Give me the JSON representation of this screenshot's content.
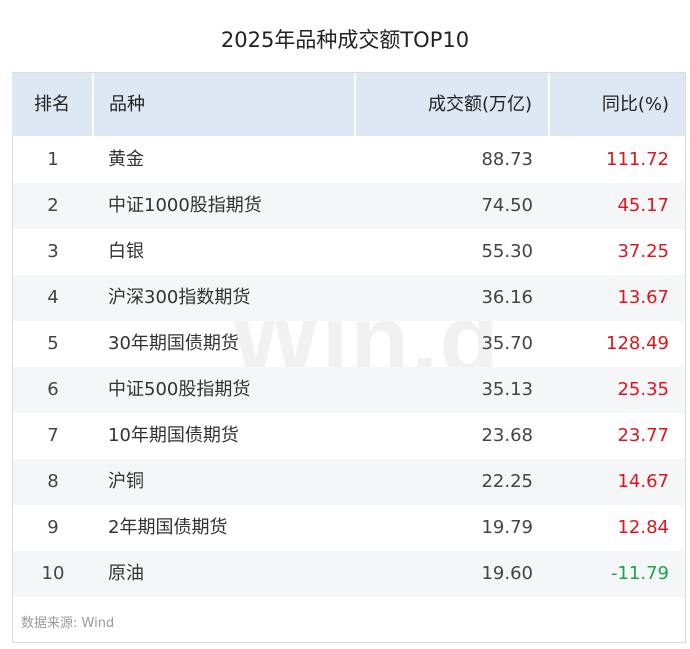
{
  "title": "2025年品种成交额TOP10",
  "headers": {
    "rank": "排名",
    "name": "品种",
    "volume": "成交额(万亿)",
    "yoy": "同比(%)"
  },
  "rows": [
    {
      "rank": "1",
      "name": "黄金",
      "volume": "88.73",
      "yoy": "111.72"
    },
    {
      "rank": "2",
      "name": "中证1000股指期货",
      "volume": "74.50",
      "yoy": "45.17"
    },
    {
      "rank": "3",
      "name": "白银",
      "volume": "55.30",
      "yoy": "37.25"
    },
    {
      "rank": "4",
      "name": "沪深300指数期货",
      "volume": "36.16",
      "yoy": "13.67"
    },
    {
      "rank": "5",
      "name": "30年期国债期货",
      "volume": "35.70",
      "yoy": "128.49"
    },
    {
      "rank": "6",
      "name": "中证500股指期货",
      "volume": "35.13",
      "yoy": "25.35"
    },
    {
      "rank": "7",
      "name": "10年期国债期货",
      "volume": "23.68",
      "yoy": "23.77"
    },
    {
      "rank": "8",
      "name": "沪铜",
      "volume": "22.25",
      "yoy": "14.67"
    },
    {
      "rank": "9",
      "name": "2年期国债期货",
      "volume": "19.79",
      "yoy": "12.84"
    },
    {
      "rank": "10",
      "name": "原油",
      "volume": "19.60",
      "yoy": "-11.79"
    }
  ],
  "colors": {
    "positive": "#e0141e",
    "negative": "#1aa34a",
    "header_bg": "#dde8f4"
  },
  "watermark": "Win.d",
  "source": "数据来源: Wind"
}
